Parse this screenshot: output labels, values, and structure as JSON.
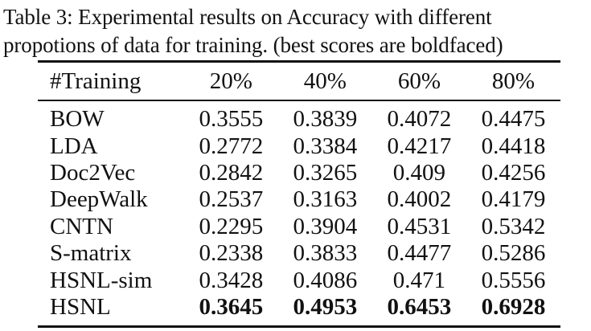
{
  "caption": {
    "line1": "Table 3:  Experimental results on Accuracy with different",
    "line2": "propotions of data for training. (best scores are boldfaced)"
  },
  "table": {
    "headers": [
      "#Training",
      "20%",
      "40%",
      "60%",
      "80%"
    ],
    "rows": [
      {
        "method": "BOW",
        "values": [
          "0.3555",
          "0.3839",
          "0.4072",
          "0.4475"
        ]
      },
      {
        "method": "LDA",
        "values": [
          "0.2772",
          "0.3384",
          "0.4217",
          "0.4418"
        ]
      },
      {
        "method": "Doc2Vec",
        "values": [
          "0.2842",
          "0.3265",
          "0.409",
          "0.4256"
        ]
      },
      {
        "method": "DeepWalk",
        "values": [
          "0.2537",
          "0.3163",
          "0.4002",
          "0.4179"
        ]
      },
      {
        "method": "CNTN",
        "values": [
          "0.2295",
          "0.3904",
          "0.4531",
          "0.5342"
        ]
      },
      {
        "method": "S-matrix",
        "values": [
          "0.2338",
          "0.3833",
          "0.4477",
          "0.5286"
        ]
      },
      {
        "method": "HSNL-sim",
        "values": [
          "0.3428",
          "0.4086",
          "0.471",
          "0.5556"
        ]
      },
      {
        "method": "HSNL",
        "values": [
          "0.3645",
          "0.4953",
          "0.6453",
          "0.6928"
        ],
        "bold": true
      }
    ]
  }
}
